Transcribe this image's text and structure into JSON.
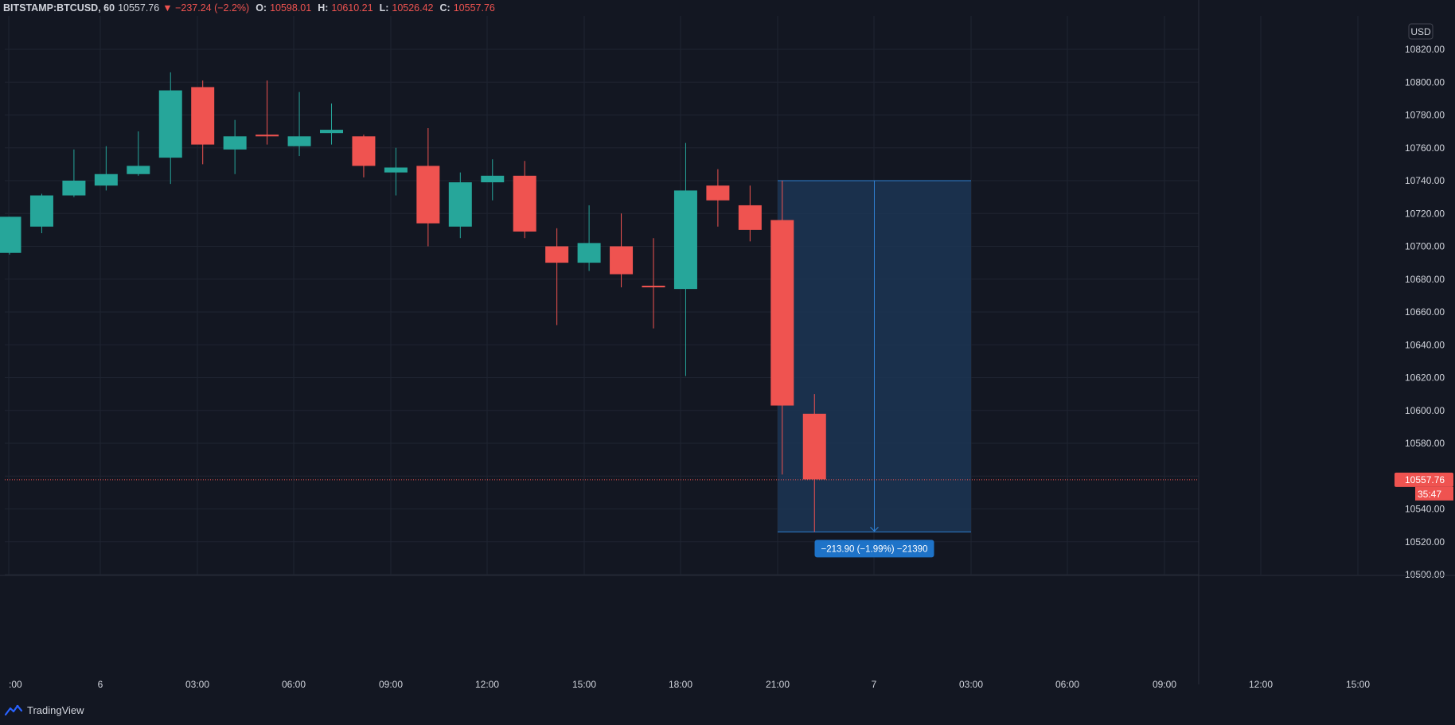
{
  "header": {
    "symbol": "BITSTAMP:BTCUSD, 60",
    "last": "10557.76",
    "change": "−237.24 (−2.2%)",
    "o_label": "O:",
    "o_value": "10598.01",
    "h_label": "H:",
    "h_value": "10610.21",
    "l_label": "L:",
    "l_value": "10526.42",
    "c_label": "C:",
    "c_value": "10557.76"
  },
  "price_axis": {
    "currency_badge": "USD",
    "ticks": [
      "10820.00",
      "10800.00",
      "10780.00",
      "10760.00",
      "10740.00",
      "10720.00",
      "10700.00",
      "10680.00",
      "10660.00",
      "10640.00",
      "10620.00",
      "10600.00",
      "10580.00",
      "10540.00",
      "10520.00",
      "10500.00"
    ],
    "last_price_label": "10557.76",
    "countdown_label": "35:47"
  },
  "time_axis": {
    "ticks": [
      ":00",
      "6",
      "03:00",
      "06:00",
      "09:00",
      "12:00",
      "15:00",
      "18:00",
      "21:00",
      "7",
      "03:00",
      "06:00",
      "09:00",
      "12:00",
      "15:00"
    ]
  },
  "colors": {
    "up": "#26a69a",
    "down": "#ef5350",
    "background": "#131722",
    "grid": "#1f2431",
    "measure_fill": "#1c3554",
    "measure_line": "#2f7fd0",
    "measure_label_bg": "#1e73c8"
  },
  "chart_data": {
    "type": "candlestick",
    "interval": "60",
    "ylim": [
      10500,
      10830
    ],
    "candles": [
      {
        "o": 10696,
        "h": 10718,
        "l": 10695,
        "c": 10718
      },
      {
        "o": 10712,
        "h": 10732,
        "l": 10708,
        "c": 10731
      },
      {
        "o": 10731,
        "h": 10759,
        "l": 10730,
        "c": 10740
      },
      {
        "o": 10737,
        "h": 10761,
        "l": 10734,
        "c": 10744
      },
      {
        "o": 10744,
        "h": 10770,
        "l": 10743,
        "c": 10749
      },
      {
        "o": 10754,
        "h": 10806,
        "l": 10738,
        "c": 10795
      },
      {
        "o": 10797,
        "h": 10801,
        "l": 10750,
        "c": 10762
      },
      {
        "o": 10759,
        "h": 10777,
        "l": 10744,
        "c": 10767
      },
      {
        "o": 10768,
        "h": 10801,
        "l": 10762,
        "c": 10767
      },
      {
        "o": 10761,
        "h": 10794,
        "l": 10755,
        "c": 10767
      },
      {
        "o": 10769,
        "h": 10787,
        "l": 10762,
        "c": 10771
      },
      {
        "o": 10767,
        "h": 10768,
        "l": 10742,
        "c": 10749
      },
      {
        "o": 10745,
        "h": 10760,
        "l": 10731,
        "c": 10748
      },
      {
        "o": 10749,
        "h": 10772,
        "l": 10700,
        "c": 10714
      },
      {
        "o": 10712,
        "h": 10745,
        "l": 10705,
        "c": 10739
      },
      {
        "o": 10739,
        "h": 10753,
        "l": 10728,
        "c": 10743
      },
      {
        "o": 10743,
        "h": 10752,
        "l": 10705,
        "c": 10709
      },
      {
        "o": 10700,
        "h": 10711,
        "l": 10652,
        "c": 10690
      },
      {
        "o": 10690,
        "h": 10725,
        "l": 10685,
        "c": 10702
      },
      {
        "o": 10700,
        "h": 10720,
        "l": 10675,
        "c": 10683
      },
      {
        "o": 10676,
        "h": 10705,
        "l": 10650,
        "c": 10675
      },
      {
        "o": 10674,
        "h": 10763,
        "l": 10621,
        "c": 10734
      },
      {
        "o": 10737,
        "h": 10747,
        "l": 10712,
        "c": 10728
      },
      {
        "o": 10725,
        "h": 10737,
        "l": 10703,
        "c": 10710
      },
      {
        "o": 10716,
        "h": 10740,
        "l": 10561,
        "c": 10603
      },
      {
        "o": 10598,
        "h": 10610,
        "l": 10526,
        "c": 10558
      }
    ],
    "measure": {
      "from_price": 10740,
      "to_price": 10526,
      "start_index": 24,
      "end_offset": 30,
      "label": "−213.90 (−1.99%) −21390"
    },
    "last_price": 10557.76
  }
}
